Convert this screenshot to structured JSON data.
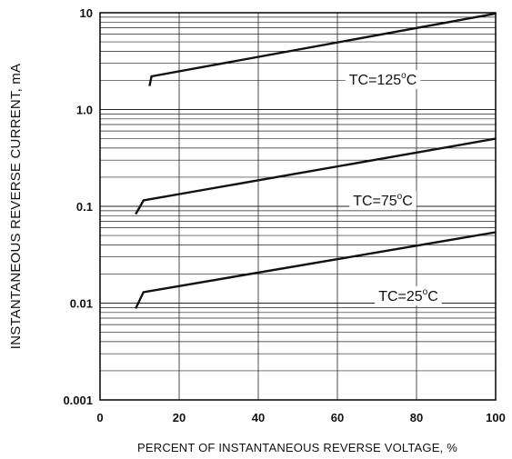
{
  "chart_data": {
    "type": "line",
    "title": "",
    "xlabel": "PERCENT OF INSTANTANEOUS REVERSE VOLTAGE, %",
    "ylabel": "INSTANTANEOUS REVERSE CURRENT, mA",
    "xlim": [
      0,
      100
    ],
    "ylim": [
      0.001,
      10
    ],
    "yscale": "log",
    "grid": true,
    "x_ticks": [
      "0",
      "20",
      "40",
      "60",
      "80",
      "100"
    ],
    "y_ticks": [
      "0.001",
      "0.01",
      "0.1",
      "1.0",
      "10"
    ],
    "series": [
      {
        "name": "TC=125°C",
        "label_main": "TC=125",
        "label_sup": "o",
        "label_unit": "C",
        "points": [
          [
            12.5,
            1.75
          ],
          [
            13,
            2.2
          ],
          [
            100,
            9.8
          ]
        ]
      },
      {
        "name": "TC=75°C",
        "label_main": "TC=75",
        "label_sup": "o",
        "label_unit": "C",
        "points": [
          [
            9,
            0.083
          ],
          [
            11,
            0.115
          ],
          [
            100,
            0.5
          ]
        ]
      },
      {
        "name": "TC=25°C",
        "label_main": "TC=25",
        "label_sup": "o",
        "label_unit": "C",
        "points": [
          [
            9,
            0.0088
          ],
          [
            11,
            0.013
          ],
          [
            100,
            0.054
          ]
        ]
      }
    ]
  }
}
